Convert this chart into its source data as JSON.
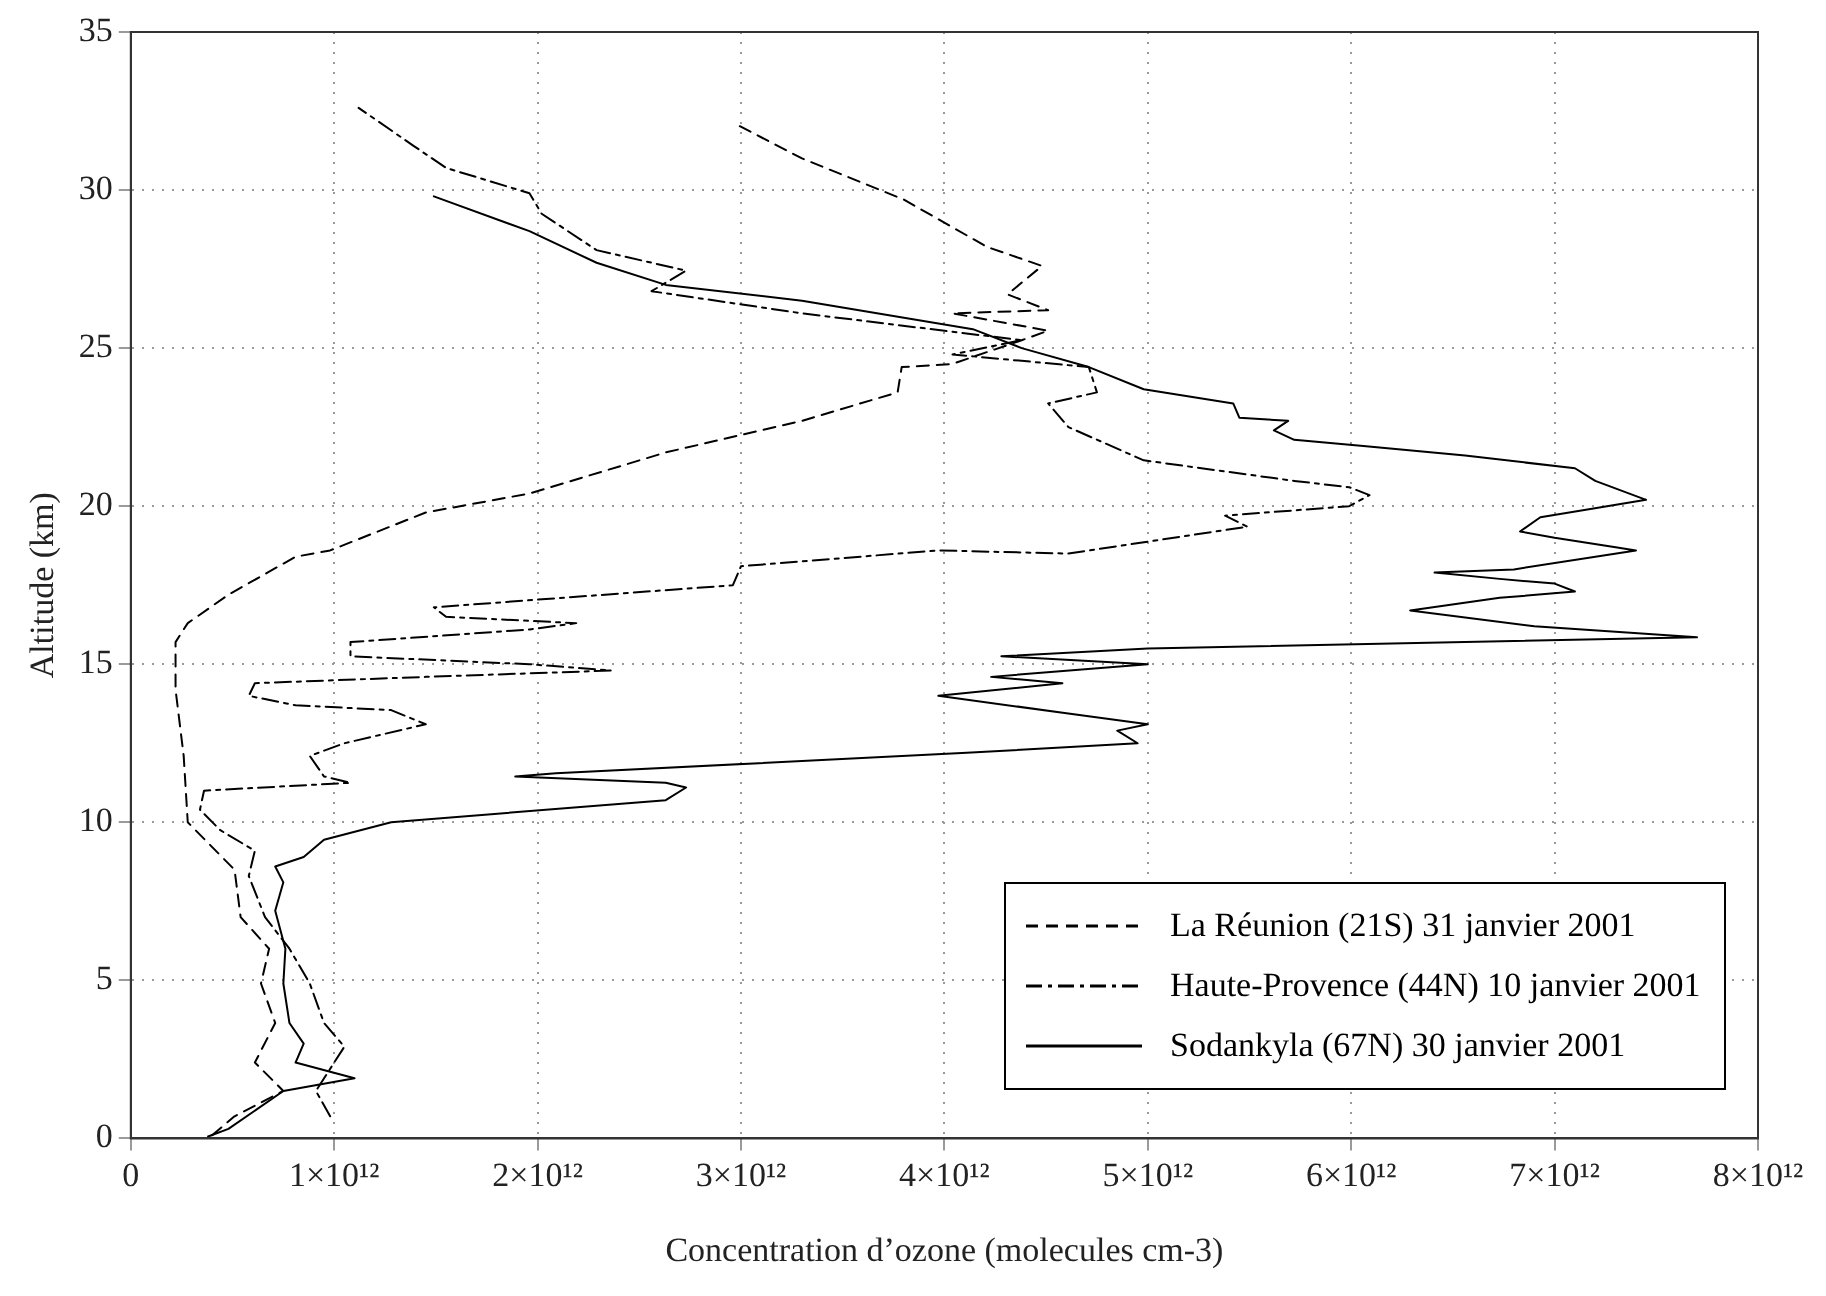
{
  "chart_data": {
    "type": "line",
    "xlabel": "Concentration d’ozone (molecules cm-3)",
    "ylabel": "Altitude (km)",
    "xlim": [
      0,
      8000000000000.0
    ],
    "ylim": [
      0,
      35
    ],
    "xticks": [
      {
        "value": 0,
        "label": "0"
      },
      {
        "value": 1000000000000.0,
        "label": "1×10¹²"
      },
      {
        "value": 2000000000000.0,
        "label": "2×10¹²"
      },
      {
        "value": 3000000000000.0,
        "label": "3×10¹²"
      },
      {
        "value": 4000000000000.0,
        "label": "4×10¹²"
      },
      {
        "value": 5000000000000.0,
        "label": "5×10¹²"
      },
      {
        "value": 6000000000000.0,
        "label": "6×10¹²"
      },
      {
        "value": 7000000000000.0,
        "label": "7×10¹²"
      },
      {
        "value": 8000000000000.0,
        "label": "8×10¹²"
      }
    ],
    "yticks": [
      0,
      5,
      10,
      15,
      20,
      25,
      30,
      35
    ],
    "grid": true,
    "legend": "bottom right",
    "series": [
      {
        "name": "La Réunion (21S) 31 janvier 2001",
        "color": "#000000",
        "line_style": "dashed",
        "x": [
          400000000000.0,
          510000000000.0,
          750000000000.0,
          610000000000.0,
          710000000000.0,
          640000000000.0,
          680000000000.0,
          540000000000.0,
          510000000000.0,
          410000000000.0,
          280000000000.0,
          260000000000.0,
          220000000000.0,
          220000000000.0,
          280000000000.0,
          480000000000.0,
          810000000000.0,
          980000000000.0,
          1450000000000.0,
          1960000000000.0,
          2630000000000.0,
          3300000000000.0,
          3770000000000.0,
          3790000000000.0,
          4040000000000.0,
          4380000000000.0,
          4510000000000.0,
          4040000000000.0,
          4510000000000.0,
          4310000000000.0,
          4480000000000.0,
          4210000000000.0,
          3800000000000.0,
          3300000000000.0,
          2970000000000.0
        ],
        "values": [
          0.1,
          0.7,
          1.5,
          2.4,
          3.65,
          4.9,
          6.0,
          7.0,
          8.5,
          9.15,
          10.0,
          12.1,
          14.2,
          15.7,
          16.3,
          17.2,
          18.4,
          18.6,
          19.8,
          20.4,
          21.7,
          22.7,
          23.6,
          24.4,
          24.5,
          25.25,
          25.55,
          26.1,
          26.2,
          26.7,
          27.6,
          28.2,
          29.7,
          31.0,
          32.1
        ]
      },
      {
        "name": "Haute-Provence (44N) 10 janvier 2001",
        "color": "#000000",
        "line_style": "dotted",
        "x": [
          980000000000.0,
          910000000000.0,
          1050000000000.0,
          950000000000.0,
          880000000000.0,
          780000000000.0,
          660000000000.0,
          580000000000.0,
          610000000000.0,
          440000000000.0,
          340000000000.0,
          360000000000.0,
          1080000000000.0,
          950000000000.0,
          880000000000.0,
          1050000000000.0,
          1450000000000.0,
          1280000000000.0,
          810000000000.0,
          580000000000.0,
          610000000000.0,
          1450000000000.0,
          2360000000000.0,
          1960000000000.0,
          1080000000000.0,
          1080000000000.0,
          1960000000000.0,
          2190000000000.0,
          1550000000000.0,
          1490000000000.0,
          2960000000000.0,
          3000000000000.0,
          3970000000000.0,
          4610000000000.0,
          5490000000000.0,
          5380000000000.0,
          5990000000000.0,
          6090000000000.0,
          5990000000000.0,
          5720000000000.0,
          4980000000000.0,
          4610000000000.0,
          4510000000000.0,
          4750000000000.0,
          4710000000000.0,
          4040000000000.0,
          4380000000000.0,
          3300000000000.0,
          2560000000000.0,
          2730000000000.0,
          2290000000000.0,
          2020000000000.0,
          1960000000000.0,
          1550000000000.0,
          1390000000000.0,
          1120000000000.0
        ],
        "values": [
          0.7,
          1.5,
          2.9,
          3.65,
          4.9,
          6.0,
          7.0,
          8.3,
          9.1,
          9.75,
          10.4,
          11.0,
          11.25,
          11.45,
          12.1,
          12.5,
          13.1,
          13.55,
          13.7,
          14.0,
          14.4,
          14.6,
          14.8,
          15.0,
          15.25,
          15.7,
          16.1,
          16.3,
          16.5,
          16.8,
          17.5,
          18.1,
          18.6,
          18.5,
          19.35,
          19.7,
          20.0,
          20.35,
          20.6,
          20.8,
          21.45,
          22.5,
          23.25,
          23.6,
          24.4,
          24.8,
          25.25,
          26.1,
          26.8,
          27.45,
          28.1,
          29.25,
          29.9,
          30.7,
          31.4,
          32.6
        ]
      },
      {
        "name": "Sodankyla (67N) 30 janvier 2001",
        "color": "#000000",
        "line_style": "solid",
        "x": [
          380000000000.0,
          480000000000.0,
          750000000000.0,
          1100000000000.0,
          810000000000.0,
          850000000000.0,
          780000000000.0,
          750000000000.0,
          760000000000.0,
          710000000000.0,
          750000000000.0,
          710000000000.0,
          850000000000.0,
          950000000000.0,
          1280000000000.0,
          2630000000000.0,
          2730000000000.0,
          2630000000000.0,
          1890000000000.0,
          2090000000000.0,
          4110000000000.0,
          4950000000000.0,
          4850000000000.0,
          5000000000000.0,
          4600000000000.0,
          3970000000000.0,
          4580000000000.0,
          4230000000000.0,
          5000000000000.0,
          4280000000000.0,
          5000000000000.0,
          7700000000000.0,
          6900000000000.0,
          6290000000000.0,
          6730000000000.0,
          7100000000000.0,
          7000000000000.0,
          6730000000000.0,
          6410000000000.0,
          6800000000000.0,
          7400000000000.0,
          7300000000000.0,
          7000000000000.0,
          6830000000000.0,
          6930000000000.0,
          7450000000000.0,
          7200000000000.0,
          7100000000000.0,
          6560000000000.0,
          6060000000000.0,
          5720000000000.0,
          5620000000000.0,
          5690000000000.0,
          5450000000000.0,
          5420000000000.0,
          4980000000000.0,
          4710000000000.0,
          4380000000000.0,
          4140000000000.0,
          3300000000000.0,
          2630000000000.0,
          2290000000000.0,
          1960000000000.0,
          1490000000000.0
        ],
        "values": [
          0.06,
          0.3,
          1.5,
          1.9,
          2.4,
          3.0,
          3.65,
          4.9,
          6.0,
          7.2,
          8.1,
          8.6,
          8.9,
          9.45,
          10.0,
          10.7,
          11.1,
          11.25,
          11.45,
          11.55,
          12.2,
          12.5,
          12.9,
          13.1,
          13.45,
          14.0,
          14.4,
          14.6,
          15.0,
          15.25,
          15.5,
          15.85,
          16.2,
          16.7,
          17.1,
          17.3,
          17.55,
          17.7,
          17.9,
          18.0,
          18.6,
          18.7,
          19.0,
          19.2,
          19.65,
          20.2,
          20.8,
          21.2,
          21.6,
          21.9,
          22.1,
          22.4,
          22.7,
          22.8,
          23.25,
          23.7,
          24.4,
          25.0,
          25.6,
          26.5,
          27.0,
          27.7,
          28.7,
          29.8
        ]
      }
    ]
  }
}
